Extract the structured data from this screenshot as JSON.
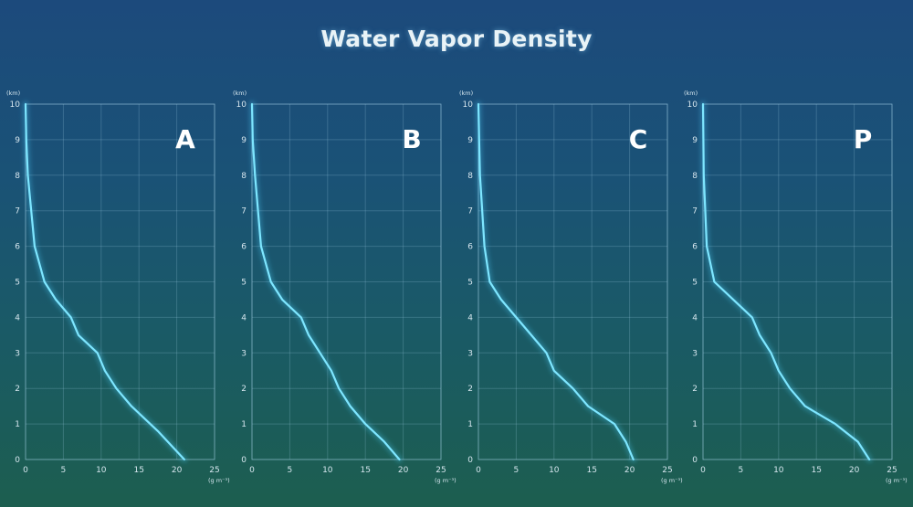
{
  "title": "Water Vapor Density",
  "chart_data": [
    {
      "type": "line",
      "panel_label": "A",
      "y_unit": "(km)",
      "x_unit": "(g m⁻³)",
      "xlim": [
        0,
        25
      ],
      "ylim": [
        0,
        10
      ],
      "xticks": [
        "0",
        "5",
        "10",
        "15",
        "20",
        "25"
      ],
      "yticks": [
        "0",
        "1",
        "2",
        "3",
        "4",
        "5",
        "6",
        "7",
        "8",
        "9",
        "10"
      ],
      "grid": true,
      "series": [
        {
          "x": [
            21.0,
            17.5,
            14.0,
            12.0,
            10.5,
            9.5,
            7.0,
            6.0,
            4.0,
            2.5,
            1.2,
            0.3,
            0.1,
            0.0
          ],
          "y": [
            0,
            0.8,
            1.5,
            2.0,
            2.5,
            3.0,
            3.5,
            4.0,
            4.5,
            5.0,
            6.0,
            8.0,
            9.0,
            10.0
          ]
        }
      ]
    },
    {
      "type": "line",
      "panel_label": "B",
      "y_unit": "(km)",
      "x_unit": "(g m⁻³)",
      "xlim": [
        0,
        25
      ],
      "ylim": [
        0,
        10
      ],
      "xticks": [
        "0",
        "5",
        "10",
        "15",
        "20",
        "25"
      ],
      "yticks": [
        "0",
        "1",
        "2",
        "3",
        "4",
        "5",
        "6",
        "7",
        "8",
        "9",
        "10"
      ],
      "grid": true,
      "series": [
        {
          "x": [
            19.5,
            17.5,
            15.0,
            13.0,
            11.5,
            10.5,
            9.0,
            7.5,
            6.5,
            4.0,
            2.5,
            1.2,
            0.4,
            0.1,
            0.0
          ],
          "y": [
            0,
            0.5,
            1.0,
            1.5,
            2.0,
            2.5,
            3.0,
            3.5,
            4.0,
            4.5,
            5.0,
            6.0,
            8.0,
            9.0,
            10.0
          ]
        }
      ]
    },
    {
      "type": "line",
      "panel_label": "C",
      "y_unit": "(km)",
      "x_unit": "(g m⁻³)",
      "xlim": [
        0,
        25
      ],
      "ylim": [
        0,
        10
      ],
      "xticks": [
        "0",
        "5",
        "10",
        "15",
        "20",
        "25"
      ],
      "yticks": [
        "0",
        "1",
        "2",
        "3",
        "4",
        "5",
        "6",
        "7",
        "8",
        "9",
        "10"
      ],
      "grid": true,
      "series": [
        {
          "x": [
            20.5,
            19.5,
            18.0,
            14.5,
            12.5,
            10.0,
            9.0,
            7.0,
            5.0,
            3.0,
            1.5,
            0.8,
            0.2,
            0.1,
            0.0
          ],
          "y": [
            0,
            0.5,
            1.0,
            1.5,
            2.0,
            2.5,
            3.0,
            3.5,
            4.0,
            4.5,
            5.0,
            6.0,
            8.0,
            9.0,
            10.0
          ]
        }
      ]
    },
    {
      "type": "line",
      "panel_label": "P",
      "y_unit": "(km)",
      "x_unit": "(g m⁻³)",
      "xlim": [
        0,
        25
      ],
      "ylim": [
        0,
        10
      ],
      "xticks": [
        "0",
        "5",
        "10",
        "15",
        "20",
        "25"
      ],
      "yticks": [
        "0",
        "1",
        "2",
        "3",
        "4",
        "5",
        "6",
        "7",
        "8",
        "9",
        "10"
      ],
      "grid": true,
      "series": [
        {
          "x": [
            22.0,
            20.5,
            17.5,
            13.5,
            11.5,
            10.0,
            9.0,
            7.5,
            6.5,
            4.0,
            1.5,
            0.5,
            0.1,
            0.0
          ],
          "y": [
            0,
            0.5,
            1.0,
            1.5,
            2.0,
            2.5,
            3.0,
            3.5,
            4.0,
            4.5,
            5.0,
            6.0,
            8.0,
            10.0
          ]
        }
      ]
    }
  ]
}
